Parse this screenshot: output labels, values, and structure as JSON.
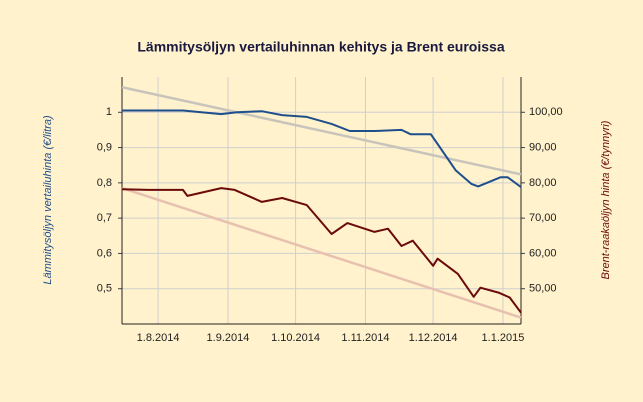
{
  "chart_data": {
    "type": "line",
    "title": "Lämmitysöljyn vertailuhinnan kehitys ja Brent euroissa",
    "y_label": "Lämmitysöljyn vertailuhinta (€/litra)",
    "y2_label": "Brent-raakaöljyn hinta (€/tynnyri)",
    "xlim": [
      196,
      373
    ],
    "xticks": [
      {
        "value": 212,
        "label": "1.8.2014"
      },
      {
        "value": 243,
        "label": "1.9.2014"
      },
      {
        "value": 273,
        "label": "1.10.2014"
      },
      {
        "value": 304,
        "label": "1.11.2014"
      },
      {
        "value": 334,
        "label": "1.12.2014"
      },
      {
        "value": 365,
        "label": "1.1.2015"
      }
    ],
    "ylim": [
      0.4,
      1.1
    ],
    "yticks": [
      {
        "value": 0.5,
        "label": "0,5"
      },
      {
        "value": 0.6,
        "label": "0,6"
      },
      {
        "value": 0.7,
        "label": "0,7"
      },
      {
        "value": 0.8,
        "label": "0,8"
      },
      {
        "value": 0.9,
        "label": "0,9"
      },
      1
    ],
    "y2lim": [
      40,
      110
    ],
    "y2ticks": [
      {
        "value": 50,
        "label": "50,00"
      },
      {
        "value": 60,
        "label": "60,00"
      },
      {
        "value": 70,
        "label": "70,00"
      },
      {
        "value": 80,
        "label": "80,00"
      },
      {
        "value": 90,
        "label": "90,00"
      },
      {
        "value": 100,
        "label": "100,00"
      }
    ],
    "grid": true,
    "series": [
      {
        "color": "#c8c4bc",
        "width": 2.5,
        "axis": "y",
        "x": [
          196,
          373
        ],
        "values": [
          1.071,
          0.824
        ]
      },
      {
        "color": "#e8c0b0",
        "width": 2.5,
        "axis": "y2",
        "x": [
          196,
          373
        ],
        "values": [
          78.5,
          41.8
        ]
      },
      {
        "color": "#1f4e8c",
        "width": 2,
        "axis": "y",
        "x": [
          196,
          223,
          240,
          247,
          258,
          267,
          278,
          289,
          297,
          308,
          320,
          324,
          333,
          336,
          344,
          351,
          354,
          364,
          367,
          373
        ],
        "values": [
          1.005,
          1.005,
          0.995,
          1.0,
          1.003,
          0.992,
          0.987,
          0.967,
          0.947,
          0.947,
          0.95,
          0.938,
          0.938,
          0.91,
          0.836,
          0.797,
          0.79,
          0.816,
          0.816,
          0.788
        ]
      },
      {
        "color": "#6b0a0a",
        "width": 2,
        "axis": "y2",
        "x": [
          196,
          208,
          223,
          225,
          240,
          246,
          258,
          267,
          278,
          289,
          296,
          308,
          314,
          320,
          325,
          334,
          336,
          345,
          352,
          355,
          363,
          368,
          373
        ],
        "values": [
          78.2,
          78,
          78,
          76.3,
          78.5,
          78,
          74.6,
          75.7,
          73.7,
          65.5,
          68.6,
          66.1,
          67,
          62.1,
          63.6,
          56.5,
          58.5,
          54.2,
          47.7,
          50.3,
          48.9,
          47.5,
          43.2
        ]
      }
    ]
  }
}
